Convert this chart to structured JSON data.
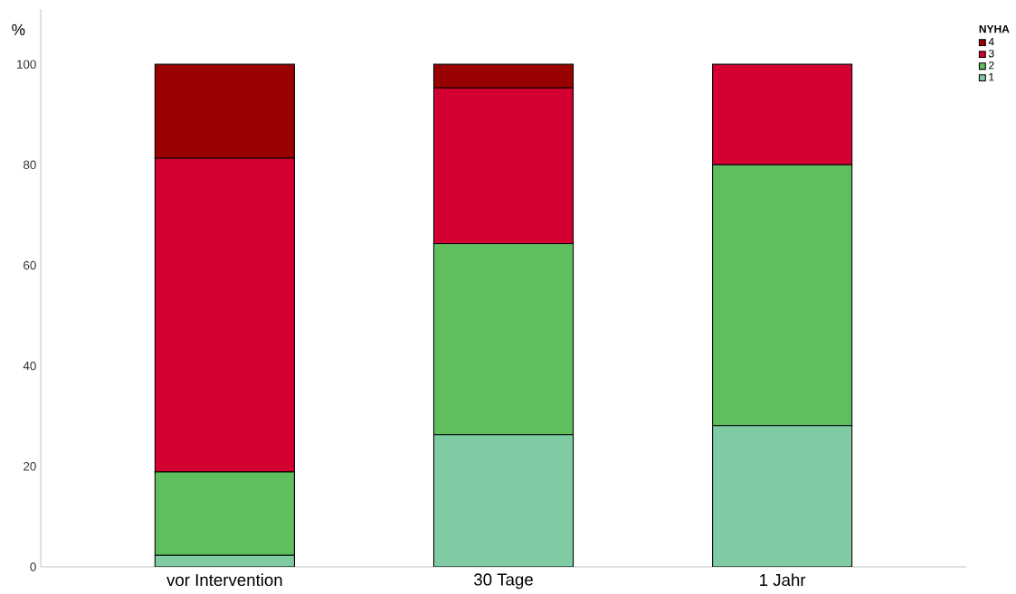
{
  "chart_data": {
    "type": "bar",
    "stacked": true,
    "ylabel": "%",
    "legend_title": "NYHA",
    "legend": "top right",
    "grid": false,
    "categories": [
      "vor Intervention",
      "30 Tage",
      "1 Jahr"
    ],
    "ylim": [
      0,
      111
    ],
    "yticks": [
      0,
      20,
      40,
      60,
      80,
      100
    ],
    "series": [
      {
        "name": "1",
        "color": "#7fcba4",
        "values": [
          2.3,
          26.3,
          28.1
        ]
      },
      {
        "name": "2",
        "color": "#5fbf5f",
        "values": [
          16.6,
          38.0,
          51.9
        ]
      },
      {
        "name": "3",
        "color": "#d50032",
        "values": [
          62.4,
          31.0,
          20.0
        ]
      },
      {
        "name": "4",
        "color": "#990000",
        "values": [
          18.7,
          4.7,
          0
        ]
      }
    ]
  }
}
